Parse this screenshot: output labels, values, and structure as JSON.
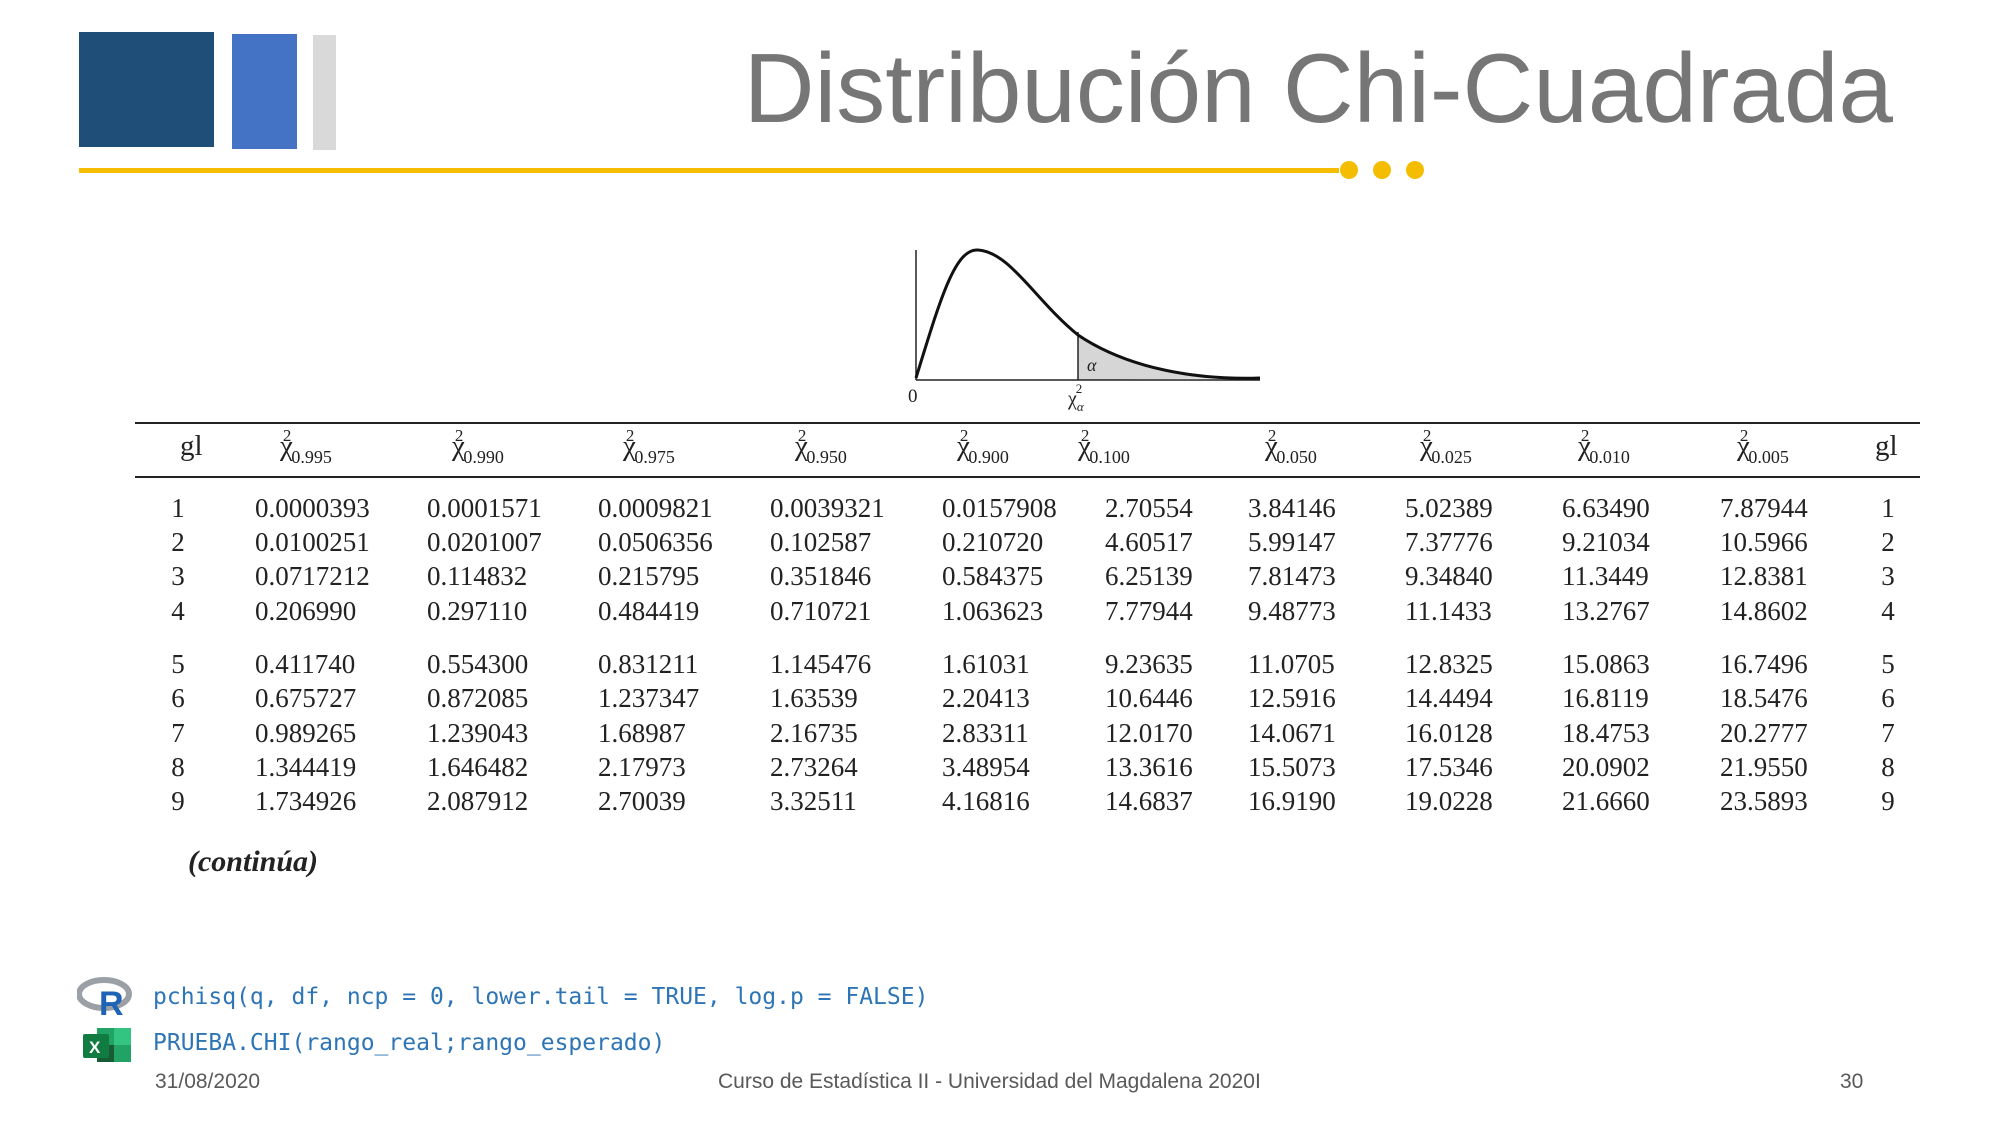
{
  "slide": {
    "title": "Distribución Chi-Cuadrada",
    "accent_color": "#f5bd00",
    "decor_colors": [
      "#1f4e79",
      "#4472c4",
      "#d9d9d9"
    ]
  },
  "figure": {
    "origin_label": "0",
    "alpha_label": "α",
    "chi_label": "χ",
    "chi_sup": "2",
    "chi_sub": "α"
  },
  "table": {
    "headers": [
      {
        "text": "gl",
        "sub": ""
      },
      {
        "text": "χ",
        "sub": "0.995"
      },
      {
        "text": "χ",
        "sub": "0.990"
      },
      {
        "text": "χ",
        "sub": "0.975"
      },
      {
        "text": "χ",
        "sub": "0.950"
      },
      {
        "text": "χ",
        "sub": "0.900"
      },
      {
        "text": "χ",
        "sub": "0.100"
      },
      {
        "text": "χ",
        "sub": "0.050"
      },
      {
        "text": "χ",
        "sub": "0.025"
      },
      {
        "text": "χ",
        "sub": "0.010"
      },
      {
        "text": "χ",
        "sub": "0.005"
      },
      {
        "text": "gl",
        "sub": ""
      }
    ],
    "rows": [
      [
        "1",
        "0.0000393",
        "0.0001571",
        "0.0009821",
        "0.0039321",
        "0.0157908",
        "2.70554",
        "3.84146",
        "5.02389",
        "6.63490",
        "7.87944",
        "1"
      ],
      [
        "2",
        "0.0100251",
        "0.0201007",
        "0.0506356",
        "0.102587",
        "0.210720",
        "4.60517",
        "5.99147",
        "7.37776",
        "9.21034",
        "10.5966",
        "2"
      ],
      [
        "3",
        "0.0717212",
        "0.114832",
        "0.215795",
        "0.351846",
        "0.584375",
        "6.25139",
        "7.81473",
        "9.34840",
        "11.3449",
        "12.8381",
        "3"
      ],
      [
        "4",
        "0.206990",
        "0.297110",
        "0.484419",
        "0.710721",
        "1.063623",
        "7.77944",
        "9.48773",
        "11.1433",
        "13.2767",
        "14.8602",
        "4"
      ],
      [
        "5",
        "0.411740",
        "0.554300",
        "0.831211",
        "1.145476",
        "1.61031",
        "9.23635",
        "11.0705",
        "12.8325",
        "15.0863",
        "16.7496",
        "5"
      ],
      [
        "6",
        "0.675727",
        "0.872085",
        "1.237347",
        "1.63539",
        "2.20413",
        "10.6446",
        "12.5916",
        "14.4494",
        "16.8119",
        "18.5476",
        "6"
      ],
      [
        "7",
        "0.989265",
        "1.239043",
        "1.68987",
        "2.16735",
        "2.83311",
        "12.0170",
        "14.0671",
        "16.0128",
        "18.4753",
        "20.2777",
        "7"
      ],
      [
        "8",
        "1.344419",
        "1.646482",
        "2.17973",
        "2.73264",
        "3.48954",
        "13.3616",
        "15.5073",
        "17.5346",
        "20.0902",
        "21.9550",
        "8"
      ],
      [
        "9",
        "1.734926",
        "2.087912",
        "2.70039",
        "3.32511",
        "4.16816",
        "14.6837",
        "16.9190",
        "19.0228",
        "21.6660",
        "23.5893",
        "9"
      ]
    ],
    "note": "(continúa)"
  },
  "code": {
    "r_icon_letter": "R",
    "r_line": "pchisq(q, df, ncp = 0, lower.tail = TRUE, log.p = FALSE)",
    "excel_icon_letter": "X",
    "excel_line": "PRUEBA.CHI(rango_real;rango_esperado)"
  },
  "footer": {
    "date": "31/08/2020",
    "course": "Curso de Estadística II - Universidad del Magdalena 2020I",
    "page": "30"
  }
}
